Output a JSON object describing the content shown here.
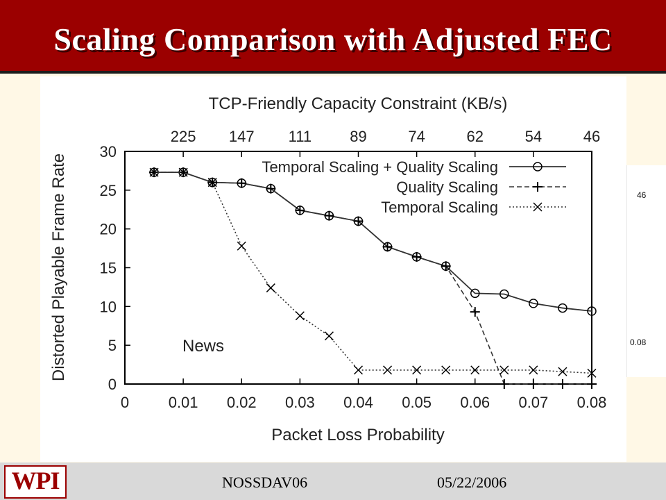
{
  "slide": {
    "title": "Scaling Comparison with Adjusted FEC",
    "footer_left": "NOSSDAV06",
    "footer_right": "05/22/2006",
    "logo_text": "WPI",
    "colors": {
      "header": "#9b0000",
      "background": "#fff8e6",
      "footer": "#d9d9d9"
    }
  },
  "background_fragment": {
    "top_label": "46",
    "bottom_label": "0.08"
  },
  "chart_data": {
    "type": "line",
    "title": "",
    "xlabel": "Packet Loss Probability",
    "ylabel": "Distorted Playable Frame Rate",
    "top_axis_label": "TCP-Friendly Capacity Constraint (KB/s)",
    "annotation": "News",
    "xlim": [
      0,
      0.08
    ],
    "ylim": [
      0,
      30
    ],
    "x_ticks": [
      "0",
      "0.01",
      "0.02",
      "0.03",
      "0.04",
      "0.05",
      "0.06",
      "0.07",
      "0.08"
    ],
    "y_ticks": [
      "0",
      "5",
      "10",
      "15",
      "20",
      "25",
      "30"
    ],
    "top_ticks": [
      {
        "x": 0.01,
        "label": "225"
      },
      {
        "x": 0.02,
        "label": "147"
      },
      {
        "x": 0.03,
        "label": "111"
      },
      {
        "x": 0.04,
        "label": "89"
      },
      {
        "x": 0.05,
        "label": "74"
      },
      {
        "x": 0.06,
        "label": "62"
      },
      {
        "x": 0.07,
        "label": "54"
      },
      {
        "x": 0.08,
        "label": "46"
      }
    ],
    "grid": false,
    "legend": "top-right",
    "series": [
      {
        "name": "Temporal Scaling + Quality Scaling",
        "marker": "circle",
        "line": "solid",
        "points": [
          [
            0.005,
            27.3
          ],
          [
            0.01,
            27.3
          ],
          [
            0.015,
            26.0
          ],
          [
            0.02,
            25.9
          ],
          [
            0.025,
            25.2
          ],
          [
            0.03,
            22.4
          ],
          [
            0.035,
            21.7
          ],
          [
            0.04,
            21.0
          ],
          [
            0.045,
            17.7
          ],
          [
            0.05,
            16.4
          ],
          [
            0.055,
            15.2
          ],
          [
            0.06,
            11.7
          ],
          [
            0.065,
            11.6
          ],
          [
            0.07,
            10.4
          ],
          [
            0.075,
            9.8
          ],
          [
            0.08,
            9.4
          ]
        ]
      },
      {
        "name": "Quality Scaling",
        "marker": "plus",
        "line": "dashed",
        "points": [
          [
            0.005,
            27.3
          ],
          [
            0.01,
            27.3
          ],
          [
            0.015,
            26.0
          ],
          [
            0.02,
            25.9
          ],
          [
            0.025,
            25.2
          ],
          [
            0.03,
            22.4
          ],
          [
            0.035,
            21.7
          ],
          [
            0.04,
            21.0
          ],
          [
            0.045,
            17.7
          ],
          [
            0.05,
            16.4
          ],
          [
            0.055,
            15.2
          ],
          [
            0.06,
            9.3
          ],
          [
            0.065,
            0
          ],
          [
            0.07,
            0
          ],
          [
            0.075,
            0
          ],
          [
            0.08,
            0
          ]
        ]
      },
      {
        "name": "Temporal Scaling",
        "marker": "cross",
        "line": "dotted",
        "points": [
          [
            0.005,
            27.3
          ],
          [
            0.01,
            27.3
          ],
          [
            0.015,
            26.0
          ],
          [
            0.02,
            17.8
          ],
          [
            0.025,
            12.4
          ],
          [
            0.03,
            8.8
          ],
          [
            0.035,
            6.2
          ],
          [
            0.04,
            1.8
          ],
          [
            0.045,
            1.8
          ],
          [
            0.05,
            1.8
          ],
          [
            0.055,
            1.8
          ],
          [
            0.06,
            1.8
          ],
          [
            0.065,
            1.8
          ],
          [
            0.07,
            1.8
          ],
          [
            0.075,
            1.6
          ],
          [
            0.08,
            1.4
          ]
        ]
      }
    ]
  }
}
